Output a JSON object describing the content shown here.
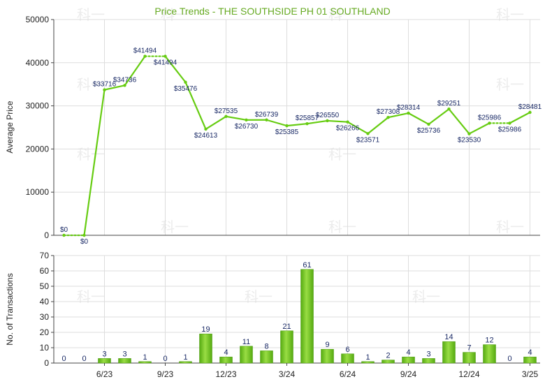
{
  "colors": {
    "series": "#66cc11",
    "bar_top": "#99dd44",
    "bar_bottom": "#55aa11",
    "title": "#66aa22",
    "grid": "#dddddd",
    "axis": "#444444"
  },
  "watermark": "科一",
  "chart_data": [
    {
      "type": "line",
      "title": "Price Trends - THE SOUTHSIDE PH 01 SOUTHLAND",
      "ylabel": "Average Price",
      "xlabel": "",
      "ylim": [
        0,
        50000
      ],
      "yticks": [
        0,
        10000,
        20000,
        30000,
        40000,
        50000
      ],
      "grid": true,
      "x_ticks": [
        "6/23",
        "9/23",
        "12/23",
        "3/24",
        "6/24",
        "9/24",
        "12/24",
        "3/25"
      ],
      "values": [
        0,
        0,
        33716,
        34736,
        41494,
        41494,
        35476,
        24613,
        27535,
        26730,
        26739,
        25385,
        25857,
        26550,
        26266,
        23571,
        27308,
        28314,
        25736,
        29251,
        23530,
        25986,
        25986,
        28481
      ],
      "point_labels": [
        "$0",
        "$0",
        "$33716",
        "$34736",
        "$41494",
        "$41494",
        "$35476",
        "$24613",
        "$27535",
        "$26730",
        "$26739",
        "$25385",
        "$25857",
        "$26550",
        "$26266",
        "$23571",
        "$27308",
        "$28314",
        "$25736",
        "$29251",
        "$23530",
        "$25986",
        "$25986",
        "$28481"
      ],
      "dotted_segments": [
        0,
        4,
        21
      ]
    },
    {
      "type": "bar",
      "ylabel": "No. of Transactions",
      "xlabel": "",
      "ylim": [
        0,
        70
      ],
      "yticks": [
        0,
        10,
        20,
        30,
        40,
        50,
        60,
        70
      ],
      "grid": true,
      "x_ticks": [
        "6/23",
        "9/23",
        "12/23",
        "3/24",
        "6/24",
        "9/24",
        "12/24",
        "3/25"
      ],
      "values": [
        0,
        0,
        3,
        3,
        1,
        0,
        1,
        19,
        4,
        11,
        8,
        21,
        61,
        9,
        6,
        1,
        2,
        4,
        3,
        14,
        7,
        12,
        0,
        4
      ]
    }
  ]
}
